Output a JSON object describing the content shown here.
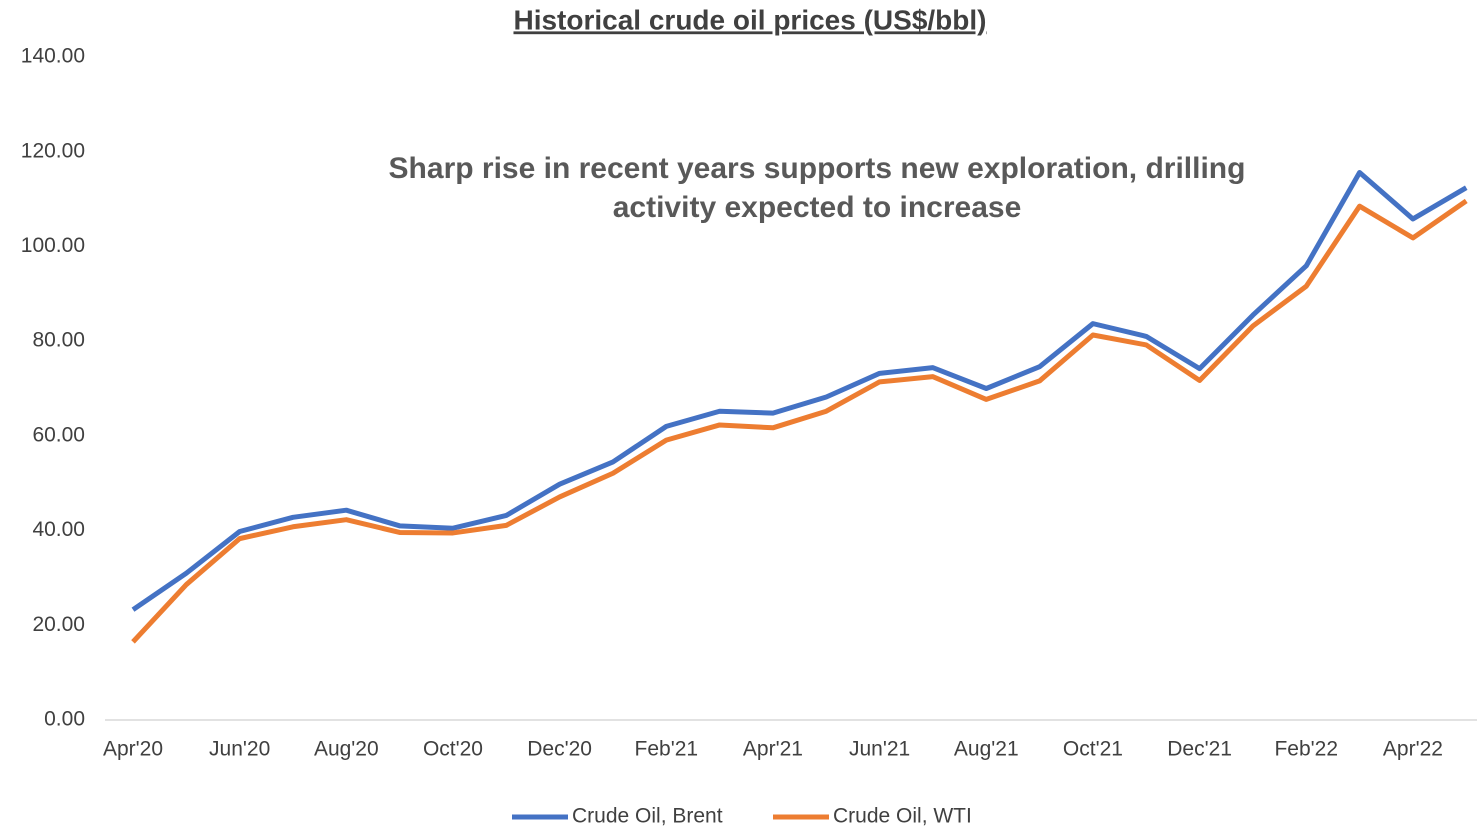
{
  "chart_data": {
    "type": "line",
    "title": "Historical crude oil prices (US$/bbl)",
    "annotation": [
      "Sharp rise in recent years supports new exploration, drilling",
      "activity expected to increase"
    ],
    "categories": [
      "Apr'20",
      null,
      "Jun'20",
      null,
      "Aug'20",
      null,
      "Oct'20",
      null,
      "Dec'20",
      null,
      "Feb'21",
      null,
      "Apr'21",
      null,
      "Jun'21",
      null,
      "Aug'21",
      null,
      "Oct'21",
      null,
      "Dec'21",
      null,
      "Feb'22",
      null,
      "Apr'22",
      null
    ],
    "series": [
      {
        "name": "Crude Oil, Brent",
        "color": "#4472c4",
        "values": [
          23.3,
          31.0,
          39.8,
          42.8,
          44.3,
          41.0,
          40.5,
          43.2,
          49.8,
          54.5,
          62.0,
          65.2,
          64.8,
          68.2,
          73.2,
          74.4,
          70.0,
          74.6,
          83.7,
          81.0,
          74.2,
          85.5,
          95.9,
          115.6,
          105.8,
          112.4
        ]
      },
      {
        "name": "Crude Oil, WTI",
        "color": "#ed7d31",
        "values": [
          16.5,
          28.6,
          38.3,
          40.8,
          42.3,
          39.6,
          39.5,
          41.1,
          47.1,
          52.1,
          59.1,
          62.3,
          61.7,
          65.2,
          71.4,
          72.5,
          67.7,
          71.6,
          81.3,
          79.2,
          71.7,
          83.2,
          91.6,
          108.5,
          101.8,
          109.6
        ]
      }
    ],
    "ylim": [
      0,
      140
    ],
    "yticks": [
      {
        "value": 0,
        "label": "0.00"
      },
      {
        "value": 20,
        "label": "20.00"
      },
      {
        "value": 40,
        "label": "40.00"
      },
      {
        "value": 60,
        "label": "60.00"
      },
      {
        "value": 80,
        "label": "80.00"
      },
      {
        "value": 100,
        "label": "100.00"
      },
      {
        "value": 120,
        "label": "120.00"
      },
      {
        "value": 140,
        "label": "140.00"
      }
    ],
    "grid": false,
    "legend": "bottom"
  }
}
